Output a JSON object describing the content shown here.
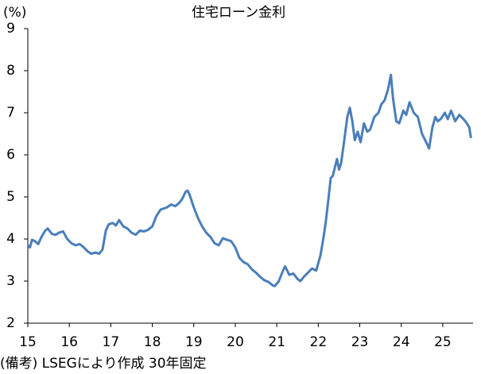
{
  "chart_data": {
    "type": "line",
    "title": "住宅ローン金利",
    "y_unit": "(%)",
    "source": "(備考) LSEGにより作成 30年固定",
    "x": [
      15.0,
      15.05,
      15.1,
      15.17,
      15.25,
      15.33,
      15.42,
      15.48,
      15.58,
      15.67,
      15.75,
      15.85,
      15.95,
      16.05,
      16.15,
      16.25,
      16.35,
      16.45,
      16.53,
      16.63,
      16.72,
      16.8,
      16.88,
      16.95,
      17.05,
      17.12,
      17.2,
      17.3,
      17.4,
      17.5,
      17.6,
      17.7,
      17.8,
      17.9,
      18.0,
      18.1,
      18.2,
      18.35,
      18.45,
      18.55,
      18.64,
      18.72,
      18.8,
      18.85,
      18.9,
      19.0,
      19.1,
      19.2,
      19.3,
      19.4,
      19.5,
      19.6,
      19.7,
      19.8,
      19.9,
      20.0,
      20.1,
      20.2,
      20.3,
      20.4,
      20.5,
      20.6,
      20.7,
      20.8,
      20.9,
      20.95,
      21.05,
      21.15,
      21.2,
      21.3,
      21.4,
      21.5,
      21.57,
      21.65,
      21.75,
      21.85,
      21.95,
      22.05,
      22.12,
      22.18,
      22.25,
      22.3,
      22.35,
      22.4,
      22.45,
      22.5,
      22.55,
      22.62,
      22.7,
      22.76,
      22.82,
      22.88,
      22.95,
      23.02,
      23.1,
      23.18,
      23.25,
      23.35,
      23.45,
      23.52,
      23.6,
      23.68,
      23.75,
      23.8,
      23.88,
      23.95,
      24.05,
      24.12,
      24.2,
      24.3,
      24.4,
      24.5,
      24.6,
      24.67,
      24.75,
      24.82,
      24.88,
      24.95,
      25.05,
      25.12,
      25.2,
      25.3,
      25.4,
      25.5,
      25.58,
      25.64,
      25.68
    ],
    "series": [
      {
        "name": "30年固定",
        "color": "#4a7ebb",
        "values": [
          3.85,
          3.8,
          3.98,
          3.95,
          3.88,
          4.05,
          4.2,
          4.25,
          4.12,
          4.1,
          4.15,
          4.18,
          4.0,
          3.9,
          3.85,
          3.88,
          3.8,
          3.7,
          3.65,
          3.68,
          3.65,
          3.75,
          4.2,
          4.35,
          4.38,
          4.32,
          4.45,
          4.3,
          4.25,
          4.15,
          4.1,
          4.2,
          4.18,
          4.22,
          4.3,
          4.55,
          4.7,
          4.75,
          4.82,
          4.78,
          4.85,
          4.95,
          5.12,
          5.15,
          5.05,
          4.75,
          4.5,
          4.3,
          4.15,
          4.05,
          3.9,
          3.85,
          4.02,
          3.98,
          3.95,
          3.8,
          3.55,
          3.45,
          3.4,
          3.28,
          3.2,
          3.1,
          3.02,
          2.98,
          2.9,
          2.88,
          3.0,
          3.25,
          3.35,
          3.15,
          3.18,
          3.05,
          3.0,
          3.1,
          3.2,
          3.3,
          3.25,
          3.6,
          4.0,
          4.4,
          5.0,
          5.45,
          5.5,
          5.7,
          5.9,
          5.65,
          5.8,
          6.3,
          6.9,
          7.12,
          6.8,
          6.35,
          6.55,
          6.3,
          6.75,
          6.55,
          6.6,
          6.9,
          7.0,
          7.2,
          7.3,
          7.55,
          7.9,
          7.35,
          6.8,
          6.75,
          7.05,
          6.95,
          7.25,
          7.0,
          6.9,
          6.5,
          6.3,
          6.15,
          6.65,
          6.9,
          6.8,
          6.85,
          7.0,
          6.85,
          7.05,
          6.8,
          6.95,
          6.85,
          6.75,
          6.65,
          6.4
        ]
      }
    ],
    "xlim": [
      15,
      25.73
    ],
    "xticks": [
      15,
      16,
      17,
      18,
      19,
      20,
      21,
      22,
      23,
      24,
      25
    ],
    "ylim": [
      2,
      9
    ],
    "yticks": [
      2,
      3,
      4,
      5,
      6,
      7,
      8,
      9
    ],
    "grid": false
  }
}
